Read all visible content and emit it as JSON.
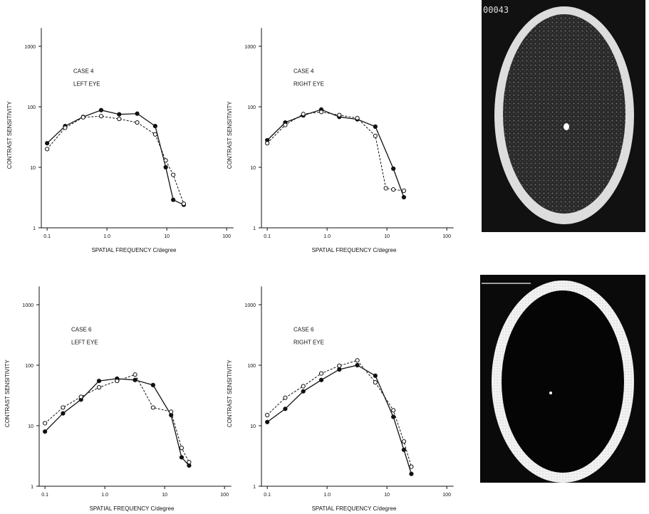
{
  "chart_data": [
    {
      "type": "line",
      "xscale": "log",
      "yscale": "log",
      "xlabel": "SPATIAL FREQUENCY C/degree",
      "ylabel": "CONTRAST SENSITIVITY",
      "annotations": [
        "CASE 4",
        "LEFT EYE"
      ],
      "xlim": [
        0.08,
        130
      ],
      "ylim": [
        1,
        2000
      ],
      "xticks": [
        0.1,
        {
          "value": 1,
          "label": "1.0"
        },
        10,
        100
      ],
      "yticks": [
        1,
        10,
        100,
        1000
      ],
      "series": [
        {
          "marker": "filled",
          "dashed": false,
          "color": "#111",
          "x": [
            0.1,
            0.2,
            0.4,
            0.8,
            1.6,
            3.2,
            6.4,
            9.6,
            12.8,
            19.2
          ],
          "values": [
            25,
            48,
            68,
            88,
            75,
            77,
            48,
            10,
            2.9,
            2.4
          ]
        },
        {
          "marker": "open",
          "dashed": true,
          "color": "#111",
          "x": [
            0.1,
            0.2,
            0.4,
            0.8,
            1.6,
            3.2,
            6.4,
            9.6,
            12.8,
            19.2
          ],
          "values": [
            20,
            45,
            67,
            70,
            63,
            55,
            35,
            13,
            7.5,
            2.5
          ]
        }
      ]
    },
    {
      "type": "line",
      "xscale": "log",
      "yscale": "log",
      "xlabel": "SPATIAL FREQUENCY C/degree",
      "ylabel": "CONTRAST SENSITIVITY",
      "annotations": [
        "CASE 4",
        "RIGHT EYE"
      ],
      "xlim": [
        0.08,
        130
      ],
      "ylim": [
        1,
        2000
      ],
      "xticks": [
        0.1,
        {
          "value": 1,
          "label": "1.0"
        },
        10,
        100
      ],
      "yticks": [
        1,
        10,
        100,
        1000
      ],
      "series": [
        {
          "marker": "filled",
          "dashed": false,
          "color": "#111",
          "x": [
            0.1,
            0.2,
            0.4,
            0.8,
            1.6,
            3.2,
            6.4,
            12.8,
            19.2
          ],
          "values": [
            28,
            55,
            72,
            90,
            68,
            62,
            47,
            9.5,
            3.2
          ]
        },
        {
          "marker": "open",
          "dashed": true,
          "color": "#111",
          "x": [
            0.1,
            0.2,
            0.4,
            0.8,
            1.6,
            3.2,
            6.4,
            9.6,
            12.8,
            19.2
          ],
          "values": [
            25,
            50,
            76,
            82,
            73,
            65,
            33,
            4.5,
            4.3,
            4.1
          ]
        }
      ]
    },
    {
      "type": "line",
      "xscale": "log",
      "yscale": "log",
      "xlabel": "SPATIAL FREQUENCY C/degree",
      "ylabel": "CONTRAST SENSITIVITY",
      "annotations": [
        "CASE 6",
        "LEFT EYE"
      ],
      "xlim": [
        0.08,
        130
      ],
      "ylim": [
        1,
        2000
      ],
      "xticks": [
        0.1,
        {
          "value": 1,
          "label": "1.0"
        },
        10,
        100
      ],
      "yticks": [
        1,
        10,
        100,
        1000
      ],
      "series": [
        {
          "marker": "filled",
          "dashed": false,
          "color": "#111",
          "x": [
            0.1,
            0.2,
            0.4,
            0.8,
            1.6,
            3.2,
            6.4,
            12.8,
            19.2,
            25.6
          ],
          "values": [
            8,
            16,
            27,
            55,
            60,
            57,
            47,
            15,
            3,
            2.2
          ]
        },
        {
          "marker": "open",
          "dashed": true,
          "color": "#111",
          "x": [
            0.1,
            0.2,
            0.4,
            0.8,
            1.6,
            3.2,
            6.4,
            12.8,
            19.2,
            25.6
          ],
          "values": [
            11,
            20,
            30,
            43,
            55,
            70,
            20,
            17,
            4.3,
            2.5
          ]
        }
      ]
    },
    {
      "type": "line",
      "xscale": "log",
      "yscale": "log",
      "xlabel": "SPATIAL FREQUENCY C/degree",
      "ylabel": "CONTRAST SENSITIVITY",
      "annotations": [
        "CASE 6",
        "RIGHT EYE"
      ],
      "xlim": [
        0.08,
        130
      ],
      "ylim": [
        1,
        2000
      ],
      "xticks": [
        0.1,
        {
          "value": 1,
          "label": "1.0"
        },
        10,
        100
      ],
      "yticks": [
        1,
        10,
        100,
        1000
      ],
      "series": [
        {
          "marker": "filled",
          "dashed": false,
          "color": "#111",
          "x": [
            0.1,
            0.2,
            0.4,
            0.8,
            1.6,
            3.2,
            6.4,
            12.8,
            19.2,
            25.6
          ],
          "values": [
            11.5,
            19,
            37,
            57,
            85,
            100,
            67,
            14,
            4,
            1.6
          ]
        },
        {
          "marker": "open",
          "dashed": true,
          "color": "#111",
          "x": [
            0.1,
            0.2,
            0.4,
            0.8,
            1.6,
            3.2,
            6.4,
            12.8,
            19.2,
            25.6
          ],
          "values": [
            15,
            29,
            45,
            73,
            98,
            120,
            52,
            18,
            5.5,
            2.1
          ]
        }
      ]
    }
  ],
  "image_text": "00043"
}
